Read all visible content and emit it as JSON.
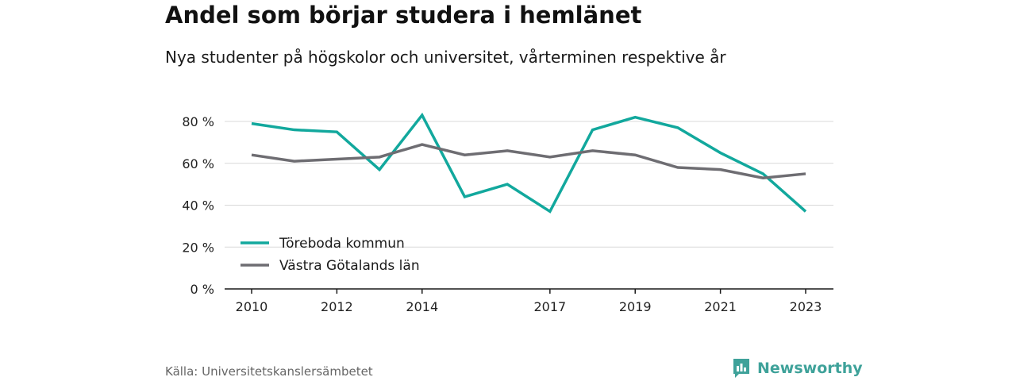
{
  "title": "Andel som börjar studera i hemlänet",
  "subtitle": "Nya studenter på högskolor och universitet, vårterminen respektive år",
  "source": "Källa: Universitetskanslersämbetet",
  "brand": {
    "name": "Newsworthy",
    "icon": "newsworthy-logo-icon",
    "color": "#3fa29a"
  },
  "chart_data": {
    "type": "line",
    "x": [
      2010,
      2011,
      2012,
      2013,
      2014,
      2015,
      2016,
      2017,
      2018,
      2019,
      2020,
      2021,
      2022,
      2023
    ],
    "x_ticks": [
      "2010",
      "2012",
      "2014",
      "2017",
      "2019",
      "2021",
      "2023"
    ],
    "y_ticks": [
      "0 %",
      "20 %",
      "40 %",
      "60 %",
      "80 %"
    ],
    "ylim": [
      0,
      80
    ],
    "grid": true,
    "legend_position": "bottom-left",
    "series": [
      {
        "name": "Töreboda kommun",
        "color": "#12a89d",
        "values": [
          79,
          76,
          75,
          57,
          83,
          44,
          50,
          37,
          76,
          82,
          77,
          65,
          55,
          37
        ]
      },
      {
        "name": "Västra Götalands län",
        "color": "#6e6d72",
        "values": [
          64,
          61,
          62,
          63,
          69,
          64,
          66,
          63,
          66,
          64,
          58,
          57,
          53,
          55
        ]
      }
    ]
  }
}
